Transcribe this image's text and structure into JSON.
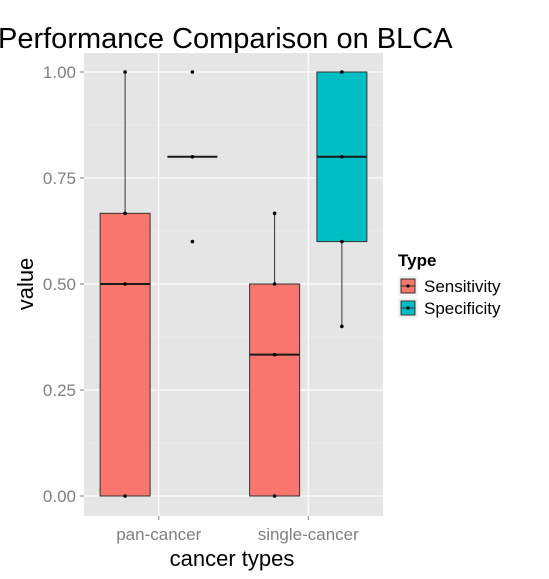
{
  "chart_data": {
    "type": "boxplot",
    "title": "Performance Comparison on BLCA",
    "xlabel": "cancer types",
    "ylabel": "value",
    "categories": [
      "pan-cancer",
      "single-cancer"
    ],
    "ylim": [
      0,
      1
    ],
    "yticks": [
      0.0,
      0.25,
      0.5,
      0.75,
      1.0
    ],
    "ytick_labels": [
      "0.00",
      "0.25",
      "0.50",
      "0.75",
      "1.00"
    ],
    "grid": true,
    "legend": {
      "title": "Type",
      "position": "right"
    },
    "series": [
      {
        "name": "Sensitivity",
        "color": "#F8766D",
        "boxes": [
          {
            "category": "pan-cancer",
            "min": 0.0,
            "q1": 0.0,
            "median": 0.5,
            "q3": 0.6667,
            "max": 1.0,
            "points": [
              0.0,
              0.5,
              0.6667,
              1.0
            ]
          },
          {
            "category": "single-cancer",
            "min": 0.0,
            "q1": 0.0,
            "median": 0.3333,
            "q3": 0.5,
            "max": 0.6667,
            "points": [
              0.0,
              0.3333,
              0.5,
              0.6667
            ]
          }
        ]
      },
      {
        "name": "Specificity",
        "color": "#00BFC4",
        "boxes": [
          {
            "category": "pan-cancer",
            "min": 0.6,
            "q1": 0.8,
            "median": 0.8,
            "q3": 0.8,
            "max": 1.0,
            "points": [
              0.6,
              0.8,
              1.0
            ],
            "outliers": [
              0.6,
              1.0
            ]
          },
          {
            "category": "single-cancer",
            "min": 0.4,
            "q1": 0.6,
            "median": 0.8,
            "q3": 1.0,
            "max": 1.0,
            "points": [
              0.4,
              0.6,
              0.8,
              1.0
            ]
          }
        ]
      }
    ]
  }
}
